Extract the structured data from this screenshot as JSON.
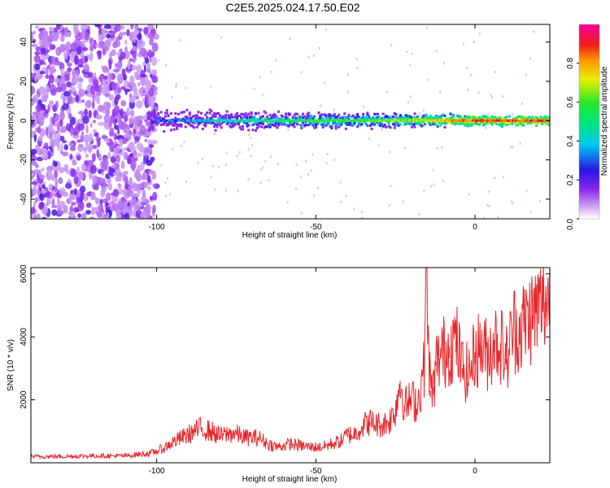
{
  "figure": {
    "title": "C2E5.2025.024.17.50.E02"
  },
  "colors": {
    "frame": "#000000",
    "snr_line": "#e8262a",
    "background": "#ffffff"
  },
  "chart_data": [
    {
      "type": "heatmap",
      "xlabel": "Height of straight line (km)",
      "ylabel": "Frequency (Hz)",
      "xlim": [
        -139.5,
        23.5
      ],
      "ylim": [
        -50,
        49
      ],
      "xticks": [
        -100,
        -50,
        0
      ],
      "yticks": [
        -40,
        -20,
        0,
        20,
        40
      ],
      "colorbar": {
        "label": "Normalized spectral amplitude",
        "range": [
          0.0,
          1.0
        ],
        "ticks": [
          0.0,
          0.2,
          0.4,
          0.6,
          0.8
        ],
        "tick_labels": [
          "0.0",
          "0.2",
          "0.4",
          "0.6",
          "0.8"
        ],
        "colormap": "rainbow (white-violet-blue-cyan-green-yellow-red-magenta)"
      },
      "features": {
        "noise_region_x": [
          -139.5,
          -100
        ],
        "signal_band_center_hz": 0,
        "band_amplitude_profile": [
          {
            "x": -100,
            "amp": 0.35
          },
          {
            "x": -80,
            "amp": 0.5
          },
          {
            "x": -60,
            "amp": 0.6
          },
          {
            "x": -40,
            "amp": 0.65
          },
          {
            "x": -20,
            "amp": 0.75
          },
          {
            "x": 0,
            "amp": 0.95
          },
          {
            "x": 23.5,
            "amp": 0.95
          }
        ]
      }
    },
    {
      "type": "line",
      "xlabel": "Height of straight line (km)",
      "ylabel": "SNR (10 * v/v)",
      "xlim": [
        -139.5,
        23.5
      ],
      "ylim": [
        0,
        6200
      ],
      "xticks": [
        -100,
        -50,
        0
      ],
      "yticks": [
        2000,
        4000,
        6000
      ],
      "series": [
        {
          "color": "#e8262a",
          "x": [
            -139.5,
            -130,
            -120,
            -110,
            -102,
            -98,
            -95,
            -90,
            -86,
            -83,
            -80,
            -76,
            -72,
            -68,
            -65,
            -62,
            -58,
            -55,
            -52,
            -48,
            -45,
            -42,
            -40,
            -38,
            -35,
            -33,
            -30,
            -27,
            -25,
            -23.5,
            -22,
            -20,
            -18,
            -16,
            -15.5,
            -14,
            -13,
            -12,
            -10,
            -8,
            -6,
            -4,
            -2,
            0,
            2,
            4,
            6,
            8,
            10,
            12,
            14,
            16,
            18,
            20,
            22,
            23.5
          ],
          "y": [
            200,
            200,
            220,
            220,
            300,
            450,
            650,
            900,
            1100,
            1000,
            850,
            950,
            800,
            800,
            600,
            500,
            600,
            550,
            500,
            500,
            600,
            700,
            900,
            900,
            1200,
            1300,
            1200,
            1300,
            1700,
            2600,
            1800,
            2000,
            1900,
            3000,
            6100,
            2300,
            2400,
            3200,
            3500,
            3700,
            3900,
            3000,
            2800,
            3500,
            3700,
            3400,
            3900,
            3800,
            3300,
            4300,
            4200,
            4500,
            4700,
            4900,
            5100,
            5300
          ]
        }
      ]
    }
  ]
}
